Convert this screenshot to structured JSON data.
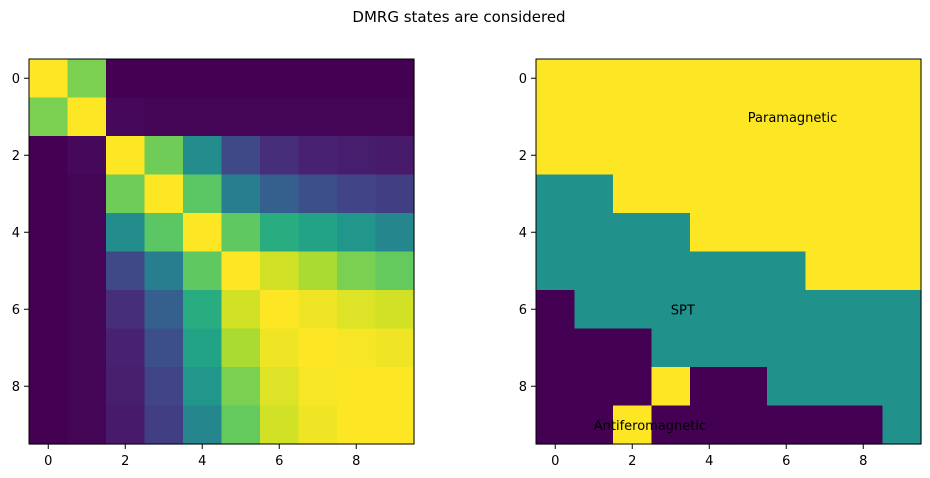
{
  "figure": {
    "title": "DMRG states are considered"
  },
  "chart_data": [
    {
      "type": "heatmap",
      "title": "",
      "xlabel": "",
      "ylabel": "",
      "colormap": "viridis",
      "xlim": [
        -0.5,
        9.5
      ],
      "ylim": [
        9.5,
        -0.5
      ],
      "xticks": [
        0,
        2,
        4,
        6,
        8
      ],
      "yticks": [
        0,
        2,
        4,
        6,
        8
      ],
      "vmin": 0,
      "vmax": 1,
      "values": [
        [
          1.0,
          0.8,
          0.0,
          0.0,
          0.0,
          0.0,
          0.0,
          0.0,
          0.0,
          0.0
        ],
        [
          0.8,
          1.0,
          0.02,
          0.01,
          0.01,
          0.01,
          0.01,
          0.01,
          0.01,
          0.01
        ],
        [
          0.0,
          0.02,
          1.0,
          0.78,
          0.48,
          0.22,
          0.13,
          0.09,
          0.08,
          0.07
        ],
        [
          0.0,
          0.01,
          0.78,
          1.0,
          0.74,
          0.42,
          0.3,
          0.24,
          0.2,
          0.18
        ],
        [
          0.0,
          0.01,
          0.48,
          0.74,
          1.0,
          0.75,
          0.62,
          0.58,
          0.52,
          0.46
        ],
        [
          0.0,
          0.01,
          0.22,
          0.42,
          0.75,
          1.0,
          0.93,
          0.87,
          0.8,
          0.76
        ],
        [
          0.0,
          0.01,
          0.13,
          0.3,
          0.62,
          0.93,
          1.0,
          0.98,
          0.95,
          0.93
        ],
        [
          0.0,
          0.01,
          0.09,
          0.24,
          0.58,
          0.87,
          0.98,
          1.0,
          0.99,
          0.98
        ],
        [
          0.0,
          0.01,
          0.08,
          0.2,
          0.52,
          0.8,
          0.95,
          0.99,
          1.0,
          1.0
        ],
        [
          0.0,
          0.01,
          0.07,
          0.18,
          0.46,
          0.76,
          0.93,
          0.98,
          1.0,
          1.0
        ]
      ]
    },
    {
      "type": "heatmap",
      "title": "",
      "xlabel": "",
      "ylabel": "",
      "colormap": "viridis",
      "xlim": [
        -0.5,
        9.5
      ],
      "ylim": [
        9.5,
        -0.5
      ],
      "xticks": [
        0,
        2,
        4,
        6,
        8
      ],
      "yticks": [
        0,
        2,
        4,
        6,
        8
      ],
      "vmin": 0,
      "vmax": 2,
      "values": [
        [
          2,
          2,
          2,
          2,
          2,
          2,
          2,
          2,
          2,
          2
        ],
        [
          2,
          2,
          2,
          2,
          2,
          2,
          2,
          2,
          2,
          2
        ],
        [
          2,
          2,
          2,
          2,
          2,
          2,
          2,
          2,
          2,
          2
        ],
        [
          1,
          1,
          2,
          2,
          2,
          2,
          2,
          2,
          2,
          2
        ],
        [
          1,
          1,
          1,
          1,
          2,
          2,
          2,
          2,
          2,
          2
        ],
        [
          1,
          1,
          1,
          1,
          1,
          1,
          1,
          2,
          2,
          2
        ],
        [
          0,
          1,
          1,
          1,
          1,
          1,
          1,
          1,
          1,
          1
        ],
        [
          0,
          0,
          0,
          1,
          1,
          1,
          1,
          1,
          1,
          1
        ],
        [
          0,
          0,
          0,
          2,
          0,
          0,
          1,
          1,
          1,
          1
        ],
        [
          0,
          0,
          2,
          0,
          0,
          0,
          0,
          0,
          0,
          1
        ]
      ],
      "annotations": [
        {
          "text": "Paramagnetic",
          "x": 5,
          "y": 1
        },
        {
          "text": "SPT",
          "x": 3,
          "y": 6
        },
        {
          "text": "Antiferomagnetic",
          "x": 1,
          "y": 9
        }
      ]
    }
  ]
}
